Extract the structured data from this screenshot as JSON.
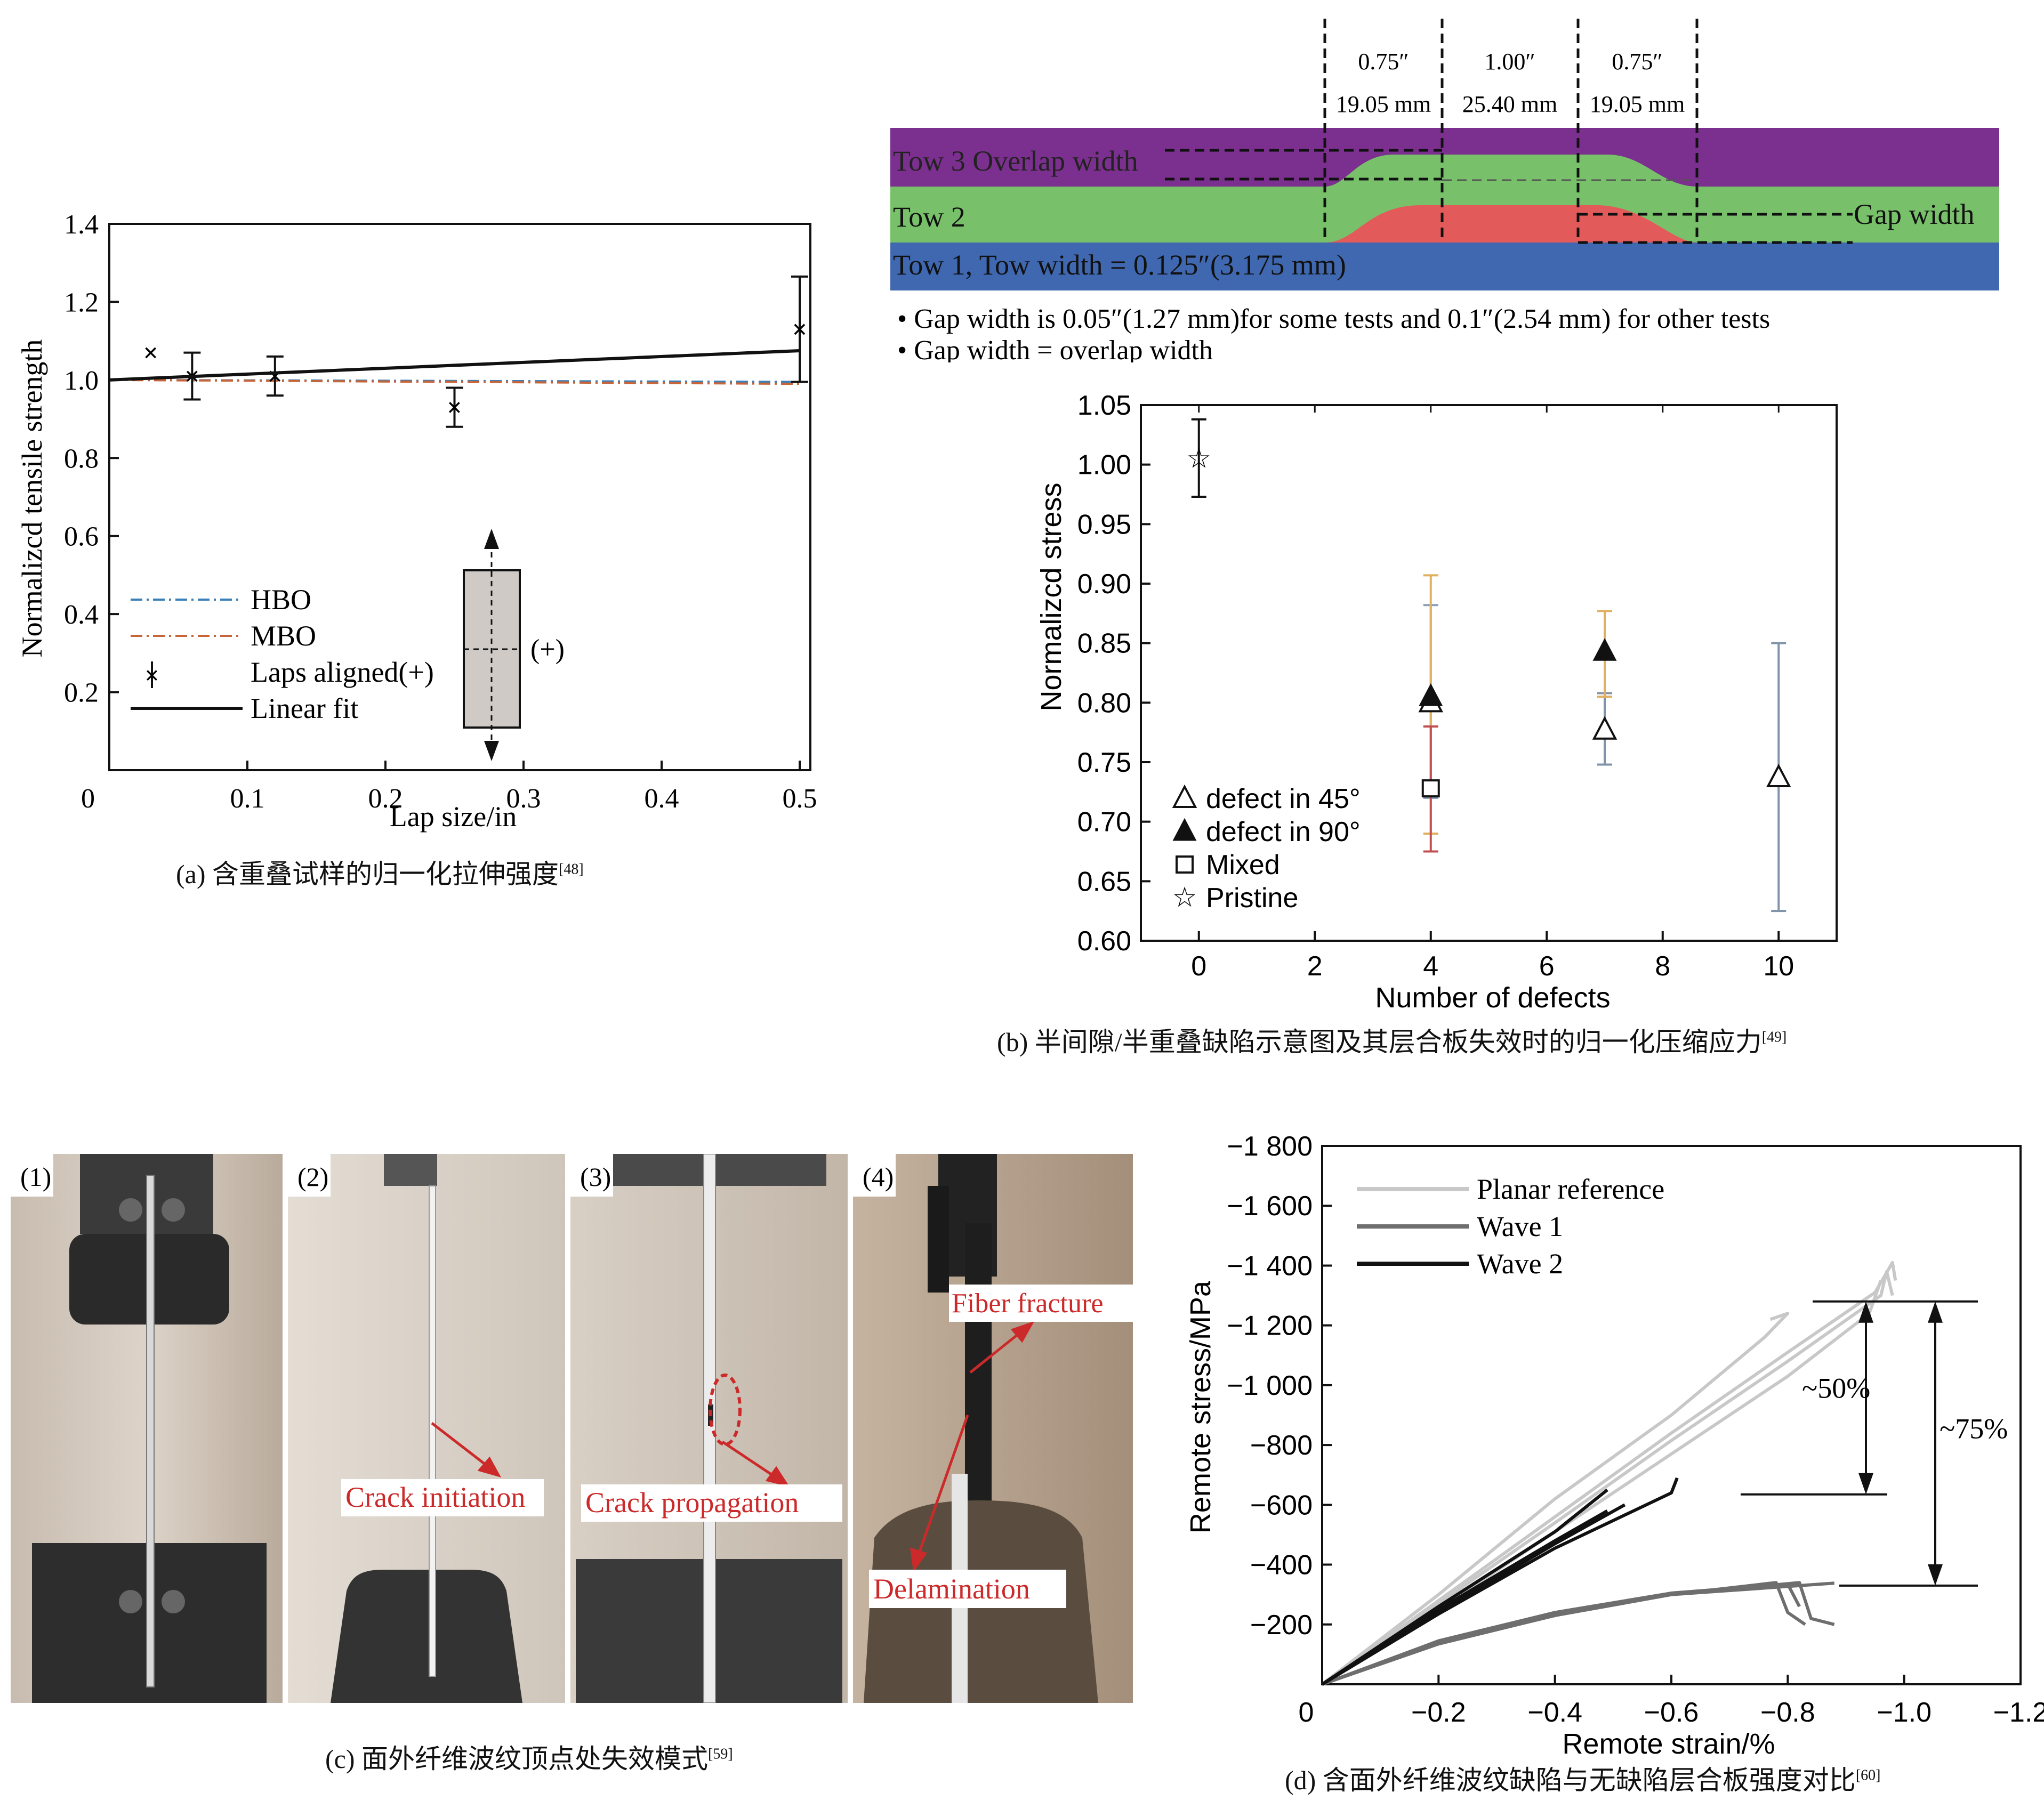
{
  "panels": {
    "a": {
      "caption": "(a) 含重叠试样的归一化拉伸强度",
      "ref": "[48]",
      "chart_data": {
        "type": "line",
        "xlabel": "Lap size/in",
        "ylabel": "Normalizcd tensile strength",
        "xlim": [
          0,
          0.5
        ],
        "ylim": [
          0,
          1.4
        ],
        "x_ticks": [
          "0",
          "0.1",
          "0.2",
          "0.3",
          "0.4",
          "0.5"
        ],
        "y_ticks": [
          "0.2",
          "0.4",
          "0.6",
          "0.8",
          "1.0",
          "1.2",
          "1.4"
        ],
        "series": [
          {
            "name": "HBO",
            "type": "line",
            "x": [
              0,
              0.5
            ],
            "y": [
              1.0,
              0.995
            ]
          },
          {
            "name": "MBO",
            "type": "line",
            "x": [
              0,
              0.5
            ],
            "y": [
              1.0,
              0.99
            ]
          },
          {
            "name": "Laps aligned(+)",
            "type": "errorbar",
            "points": [
              {
                "x": 0.03,
                "y": 1.07,
                "err": 0.0
              },
              {
                "x": 0.06,
                "y": 1.01,
                "err": 0.06
              },
              {
                "x": 0.12,
                "y": 1.01,
                "err": 0.05
              },
              {
                "x": 0.25,
                "y": 0.93,
                "err": 0.05
              },
              {
                "x": 0.5,
                "y": 1.13,
                "err": 0.135
              }
            ]
          },
          {
            "name": "Linear fit",
            "type": "line",
            "x": [
              0,
              0.5
            ],
            "y": [
              1.0,
              1.075
            ]
          }
        ],
        "inset_label": "(+)",
        "legend_position": "lower-left"
      }
    },
    "b_diagram": {
      "dims": [
        {
          "inch": "0.75″",
          "mm": "19.05 mm"
        },
        {
          "inch": "1.00″",
          "mm": "25.40 mm"
        },
        {
          "inch": "0.75″",
          "mm": "19.05 mm"
        }
      ],
      "tow3": "Tow 3 Overlap width",
      "tow2": "Tow 2",
      "gap_width": "Gap width",
      "tow1": "Tow 1, Tow width = 0.125″(3.175 mm)",
      "bullets": [
        "• Gap width is 0.05″(1.27 mm)for some tests and 0.1″(2.54 mm) for other tests",
        "• Gap width = overlap width"
      ],
      "colors": {
        "tow3": "#7b2f8e",
        "tow2": "#78c16a",
        "tow1": "#3f68b0",
        "overlap": "#e35a5a"
      }
    },
    "b": {
      "caption": "(b) 半间隙/半重叠缺陷示意图及其层合板失效时的归一化压缩应力",
      "ref": "[49]",
      "chart_data": {
        "type": "scatter",
        "xlabel": "Number of defects",
        "ylabel": "Normalizcd stress",
        "xlim": [
          -1,
          11
        ],
        "ylim": [
          0.6,
          1.05
        ],
        "x_ticks": [
          "0",
          "2",
          "4",
          "6",
          "8",
          "10"
        ],
        "y_ticks": [
          "0.60",
          "0.65",
          "0.70",
          "0.75",
          "0.80",
          "0.85",
          "0.90",
          "0.95",
          "1.00",
          "1.05"
        ],
        "series": [
          {
            "name": "defect in 45°",
            "marker": "triangle-open",
            "points": [
              {
                "x": 4,
                "y": 0.8,
                "lo": 0.72,
                "hi": 0.882,
                "color": "#8aa0b8"
              },
              {
                "x": 7,
                "y": 0.777,
                "lo": 0.748,
                "hi": 0.808,
                "color": "#7f93aa"
              },
              {
                "x": 10,
                "y": 0.737,
                "lo": 0.625,
                "hi": 0.85,
                "color": "#7f93aa"
              }
            ]
          },
          {
            "name": "defect in 90°",
            "marker": "triangle-filled",
            "points": [
              {
                "x": 4,
                "y": 0.805,
                "lo": 0.69,
                "hi": 0.907,
                "color": "#e0b060"
              },
              {
                "x": 7,
                "y": 0.843,
                "lo": 0.805,
                "hi": 0.877,
                "color": "#e0b060"
              }
            ]
          },
          {
            "name": "Mixed",
            "marker": "square-open",
            "points": [
              {
                "x": 4,
                "y": 0.728,
                "lo": 0.675,
                "hi": 0.78,
                "color": "#c05050"
              }
            ]
          },
          {
            "name": "Pristine",
            "marker": "star",
            "points": [
              {
                "x": 0,
                "y": 1.005,
                "lo": 0.973,
                "hi": 1.038,
                "color": "#111111"
              }
            ]
          }
        ],
        "legend_position": "lower-left"
      }
    },
    "c": {
      "caption": "(c) 面外纤维波纹顶点处失效模式",
      "ref": "[59]",
      "frames": [
        "(1)",
        "(2)",
        "(3)",
        "(4)"
      ],
      "annotations": [
        "Crack initiation",
        "Crack propagation",
        "Fiber fracture",
        "Delamination"
      ]
    },
    "d": {
      "caption": "(d) 含面外纤维波纹缺陷与无缺陷层合板强度对比",
      "ref": "[60]",
      "chart_data": {
        "type": "line",
        "xlabel": "Remote strain/%",
        "ylabel": "Remote stress/MPa",
        "xlim": [
          0,
          -1.2
        ],
        "ylim": [
          0,
          -1800
        ],
        "x_ticks": [
          "0",
          "−0.2",
          "−0.4",
          "−0.6",
          "−0.8",
          "−1.0",
          "−1.2"
        ],
        "y_ticks": [
          "−200",
          "−400",
          "−600",
          "−800",
          "−1 000",
          "−1 200",
          "−1 400",
          "−1 600",
          "−1 800"
        ],
        "series": [
          {
            "name": "Planar reference",
            "color": "#c8c8c8",
            "curves": [
              [
                [
                  0,
                  0
                ],
                [
                  -0.2,
                  -270
                ],
                [
                  -0.4,
                  -540
                ],
                [
                  -0.6,
                  -815
                ],
                [
                  -0.8,
                  -1080
                ],
                [
                  -0.96,
                  -1300
                ],
                [
                  -0.97,
                  -1380
                ],
                [
                  -0.98,
                  -1300
                ]
              ],
              [
                [
                  0,
                  0
                ],
                [
                  -0.2,
                  -280
                ],
                [
                  -0.4,
                  -560
                ],
                [
                  -0.6,
                  -840
                ],
                [
                  -0.8,
                  -1110
                ],
                [
                  -0.95,
                  -1310
                ],
                [
                  -0.98,
                  -1410
                ],
                [
                  -0.985,
                  -1350
                ]
              ],
              [
                [
                  0,
                  0
                ],
                [
                  -0.2,
                  -250
                ],
                [
                  -0.4,
                  -510
                ],
                [
                  -0.6,
                  -770
                ],
                [
                  -0.8,
                  -1030
                ],
                [
                  -0.94,
                  -1240
                ],
                [
                  -0.96,
                  -1350
                ]
              ],
              [
                [
                  0,
                  0
                ],
                [
                  -0.2,
                  -300
                ],
                [
                  -0.4,
                  -620
                ],
                [
                  -0.6,
                  -900
                ],
                [
                  -0.76,
                  -1160
                ],
                [
                  -0.8,
                  -1240
                ],
                [
                  -0.77,
                  -1220
                ]
              ]
            ]
          },
          {
            "name": "Wave 1",
            "color": "#6e6e6e",
            "curves": [
              [
                [
                  0,
                  0
                ],
                [
                  -0.2,
                  -140
                ],
                [
                  -0.4,
                  -230
                ],
                [
                  -0.6,
                  -300
                ],
                [
                  -0.78,
                  -340
                ],
                [
                  -0.8,
                  -240
                ],
                [
                  -0.83,
                  -200
                ]
              ],
              [
                [
                  0,
                  0
                ],
                [
                  -0.2,
                  -135
                ],
                [
                  -0.4,
                  -230
                ],
                [
                  -0.6,
                  -300
                ],
                [
                  -0.82,
                  -340
                ],
                [
                  -0.84,
                  -220
                ],
                [
                  -0.88,
                  -200
                ]
              ],
              [
                [
                  0,
                  0
                ],
                [
                  -0.2,
                  -145
                ],
                [
                  -0.4,
                  -240
                ],
                [
                  -0.6,
                  -305
                ],
                [
                  -0.8,
                  -335
                ],
                [
                  -0.82,
                  -260
                ]
              ],
              [
                [
                  0,
                  0
                ],
                [
                  -0.2,
                  -140
                ],
                [
                  -0.4,
                  -235
                ],
                [
                  -0.6,
                  -300
                ],
                [
                  -0.88,
                  -338
                ]
              ]
            ]
          },
          {
            "name": "Wave 2",
            "color": "#111111",
            "curves": [
              [
                [
                  0,
                  0
                ],
                [
                  -0.2,
                  -250
                ],
                [
                  -0.4,
                  -480
                ],
                [
                  -0.49,
                  -580
                ]
              ],
              [
                [
                  0,
                  0
                ],
                [
                  -0.2,
                  -240
                ],
                [
                  -0.4,
                  -470
                ],
                [
                  -0.52,
                  -600
                ]
              ],
              [
                [
                  0,
                  0
                ],
                [
                  -0.2,
                  -260
                ],
                [
                  -0.4,
                  -510
                ],
                [
                  -0.49,
                  -650
                ]
              ],
              [
                [
                  0,
                  0
                ],
                [
                  -0.2,
                  -235
                ],
                [
                  -0.4,
                  -455
                ],
                [
                  -0.6,
                  -640
                ],
                [
                  -0.61,
                  -690
                ]
              ]
            ]
          }
        ],
        "annotations": [
          {
            "text": "~50%",
            "from": -1280,
            "to": -635
          },
          {
            "text": "~75%",
            "from": -1280,
            "to": -330
          }
        ],
        "legend_position": "top-left"
      }
    }
  }
}
